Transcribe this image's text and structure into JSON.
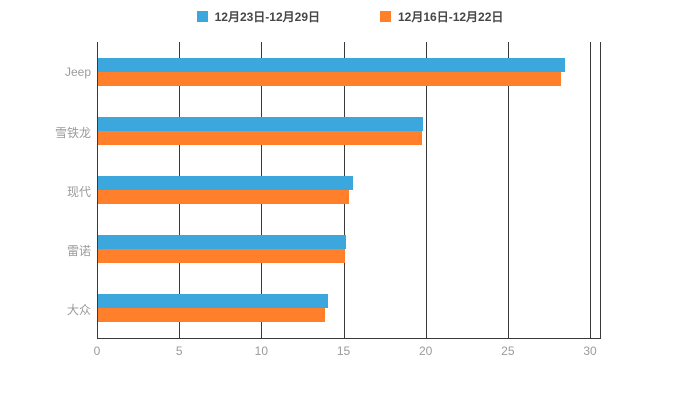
{
  "legend": {
    "items": [
      {
        "label": "12月23日-12月29日",
        "color": "#3BA7DC"
      },
      {
        "label": "12月16日-12月22日",
        "color": "#FF7F2A"
      }
    ]
  },
  "chart_data": {
    "type": "bar",
    "orientation": "horizontal",
    "title": "",
    "xlabel": "",
    "ylabel": "",
    "categories": [
      "Jeep",
      "雪铁龙",
      "现代",
      "雷诺",
      "大众"
    ],
    "series": [
      {
        "name": "12月23日-12月29日",
        "color": "#3BA7DC",
        "values": [
          28.4,
          19.8,
          15.5,
          15.1,
          14.0
        ]
      },
      {
        "name": "12月16日-12月22日",
        "color": "#FF7F2A",
        "values": [
          28.2,
          19.7,
          15.3,
          15.0,
          13.8
        ]
      }
    ],
    "x_ticks": [
      0,
      5,
      10,
      15,
      20,
      25,
      30
    ],
    "xlim": [
      0,
      30
    ],
    "grid": true,
    "legend_position": "top"
  },
  "colors": {
    "grid_line": "#3a3a3a",
    "axis_label": "#9b9b9b",
    "background": "#ffffff"
  }
}
